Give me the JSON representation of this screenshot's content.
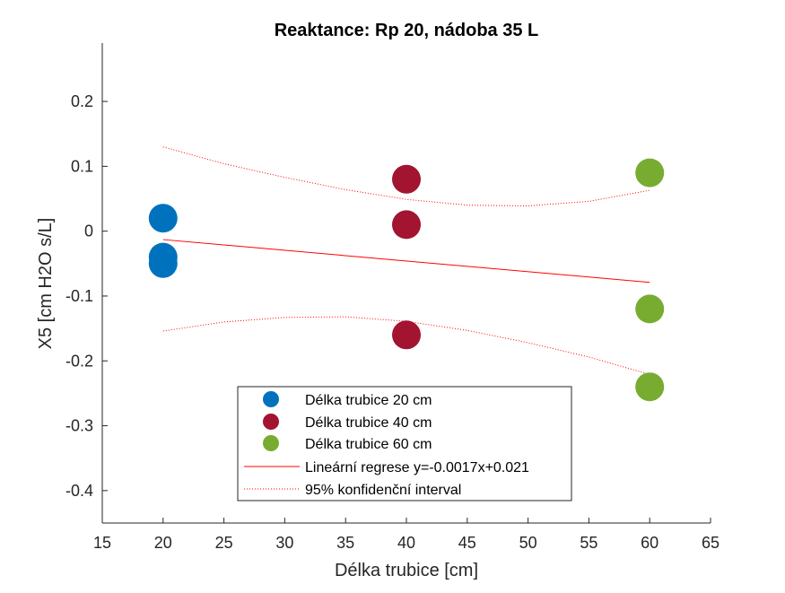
{
  "chart_data": {
    "type": "scatter",
    "title": "Reaktance: Rp 20, nádoba 35 L",
    "xlabel": "Délka trubice [cm]",
    "ylabel": "X5 [cm H2O s/L]",
    "xlim": [
      15,
      65
    ],
    "ylim": [
      -0.45,
      0.29
    ],
    "xticks": [
      15,
      20,
      25,
      30,
      35,
      40,
      45,
      50,
      55,
      60,
      65
    ],
    "yticks": [
      -0.4,
      -0.3,
      -0.2,
      -0.1,
      0,
      0.1,
      0.2
    ],
    "xtick_labels": [
      "15",
      "20",
      "25",
      "30",
      "35",
      "40",
      "45",
      "50",
      "55",
      "60",
      "65"
    ],
    "ytick_labels": [
      "-0.4",
      "-0.3",
      "-0.2",
      "-0.1",
      "0",
      "0.1",
      "0.2"
    ],
    "grid": false,
    "legend_position": "bottom-center",
    "series": [
      {
        "name": "Délka trubice 20 cm",
        "color": "#0072BD",
        "x": [
          20,
          20,
          20
        ],
        "y": [
          0.02,
          -0.04,
          -0.05
        ]
      },
      {
        "name": "Délka trubice 40 cm",
        "color": "#A2142F",
        "x": [
          40,
          40,
          40
        ],
        "y": [
          0.08,
          0.01,
          -0.16
        ]
      },
      {
        "name": "Délka trubice 60 cm",
        "color": "#77AC30",
        "x": [
          60,
          60,
          60
        ],
        "y": [
          0.09,
          -0.12,
          -0.24
        ]
      }
    ],
    "regression": {
      "name": "Lineární regrese y=-0.0017x+0.021",
      "color": "#FF0000",
      "x": [
        20,
        60
      ],
      "y": [
        -0.013,
        -0.079
      ]
    },
    "confidence_interval": {
      "name": "95% konfidenční interval",
      "color": "#FF0000",
      "upper": {
        "x": [
          20,
          25,
          30,
          35,
          40,
          45,
          50,
          55,
          60
        ],
        "y": [
          0.13,
          0.104,
          0.083,
          0.064,
          0.049,
          0.04,
          0.039,
          0.046,
          0.063
        ]
      },
      "lower": {
        "x": [
          20,
          25,
          30,
          35,
          40,
          45,
          50,
          55,
          60
        ],
        "y": [
          -0.154,
          -0.14,
          -0.133,
          -0.132,
          -0.139,
          -0.153,
          -0.172,
          -0.194,
          -0.221
        ]
      }
    }
  }
}
